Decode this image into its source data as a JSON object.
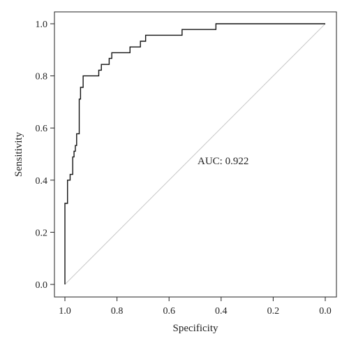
{
  "chart_data": {
    "type": "line",
    "title": "",
    "xlabel": "Specificity",
    "ylabel": "Sensitivity",
    "xlim": [
      1.0,
      0.0
    ],
    "ylim": [
      0.0,
      1.0
    ],
    "x_reversed": true,
    "x_ticks": [
      1.0,
      0.8,
      0.6,
      0.4,
      0.2,
      0.0
    ],
    "x_tick_labels": [
      "1.0",
      "0.8",
      "0.6",
      "0.4",
      "0.2",
      "0.0"
    ],
    "y_ticks": [
      0.0,
      0.2,
      0.4,
      0.6,
      0.8,
      1.0
    ],
    "y_tick_labels": [
      "0.0",
      "0.2",
      "0.4",
      "0.6",
      "0.8",
      "1.0"
    ],
    "grid": false,
    "legend": "none",
    "annotation": "AUC: 0.922",
    "series": [
      {
        "color": "#111111",
        "step": true,
        "x": [
          1.0,
          1.0,
          0.99,
          0.99,
          0.98,
          0.98,
          0.97,
          0.97,
          0.965,
          0.965,
          0.96,
          0.96,
          0.955,
          0.955,
          0.945,
          0.945,
          0.94,
          0.94,
          0.93,
          0.93,
          0.91,
          0.91,
          0.87,
          0.87,
          0.86,
          0.86,
          0.83,
          0.83,
          0.82,
          0.82,
          0.79,
          0.79,
          0.75,
          0.75,
          0.71,
          0.71,
          0.69,
          0.69,
          0.55,
          0.55,
          0.42,
          0.42,
          0.0
        ],
        "y": [
          0.0,
          0.311,
          0.311,
          0.4,
          0.4,
          0.422,
          0.422,
          0.489,
          0.489,
          0.511,
          0.511,
          0.533,
          0.533,
          0.578,
          0.578,
          0.711,
          0.711,
          0.756,
          0.756,
          0.8,
          0.8,
          0.8,
          0.8,
          0.822,
          0.822,
          0.844,
          0.844,
          0.867,
          0.867,
          0.889,
          0.889,
          0.889,
          0.889,
          0.911,
          0.911,
          0.933,
          0.933,
          0.956,
          0.956,
          0.978,
          0.978,
          1.0,
          1.0
        ]
      },
      {
        "color": "#c8c8c8",
        "step": false,
        "x": [
          1.0,
          0.0
        ],
        "y": [
          0.0,
          1.0
        ]
      }
    ]
  }
}
